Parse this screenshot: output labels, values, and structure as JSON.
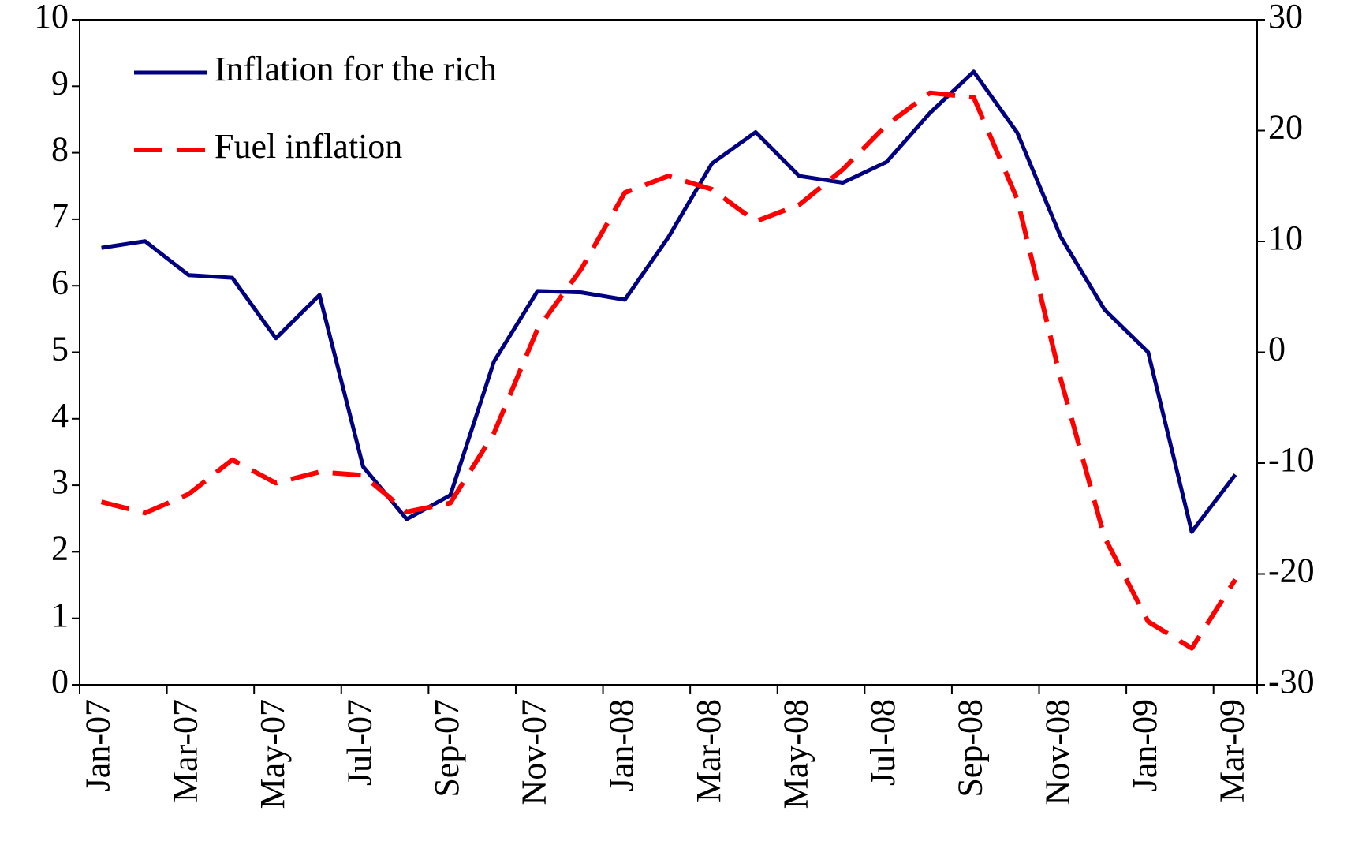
{
  "chart_data": {
    "type": "line",
    "categories": [
      "Jan-07",
      null,
      "Mar-07",
      null,
      "May-07",
      null,
      "Jul-07",
      null,
      "Sep-07",
      null,
      "Nov-07",
      null,
      "Jan-08",
      null,
      "Mar-08",
      null,
      "May-08",
      null,
      "Jul-08",
      null,
      "Sep-08",
      null,
      "Nov-08",
      null,
      "Jan-09",
      null,
      "Mar-09"
    ],
    "series": [
      {
        "name": "Inflation for the rich",
        "color": "#000080",
        "line_style": "solid",
        "values": [
          6.57,
          6.67,
          6.16,
          6.12,
          5.21,
          5.86,
          3.28,
          2.49,
          2.85,
          4.86,
          5.92,
          5.9,
          5.79,
          6.73,
          7.84,
          8.31,
          7.65,
          7.55,
          7.86,
          8.6,
          9.22,
          8.3,
          6.73,
          5.64,
          5.0,
          2.3,
          3.16
        ]
      },
      {
        "name": "Fuel inflation",
        "color": "#ff0000",
        "line_style": "dashed",
        "axis": "y2",
        "values": [
          -13.5,
          -14.5,
          -12.8,
          -9.7,
          -11.8,
          -10.8,
          -11.1,
          -14.4,
          -13.6,
          -7.3,
          2.1,
          7.5,
          14.4,
          15.9,
          14.7,
          11.8,
          13.3,
          16.5,
          20.5,
          23.4,
          23.0,
          13.8,
          -2.5,
          -16.7,
          -24.3,
          -26.7,
          -20.5
        ]
      }
    ],
    "ylim": [
      0,
      10
    ],
    "yticks": [
      0,
      1,
      2,
      3,
      4,
      5,
      6,
      7,
      8,
      9,
      10
    ],
    "y2lim": [
      -30,
      30
    ],
    "y2ticks": [
      -30,
      -20,
      -10,
      0,
      10,
      20,
      30
    ],
    "grid": false,
    "legend": "upper left"
  }
}
